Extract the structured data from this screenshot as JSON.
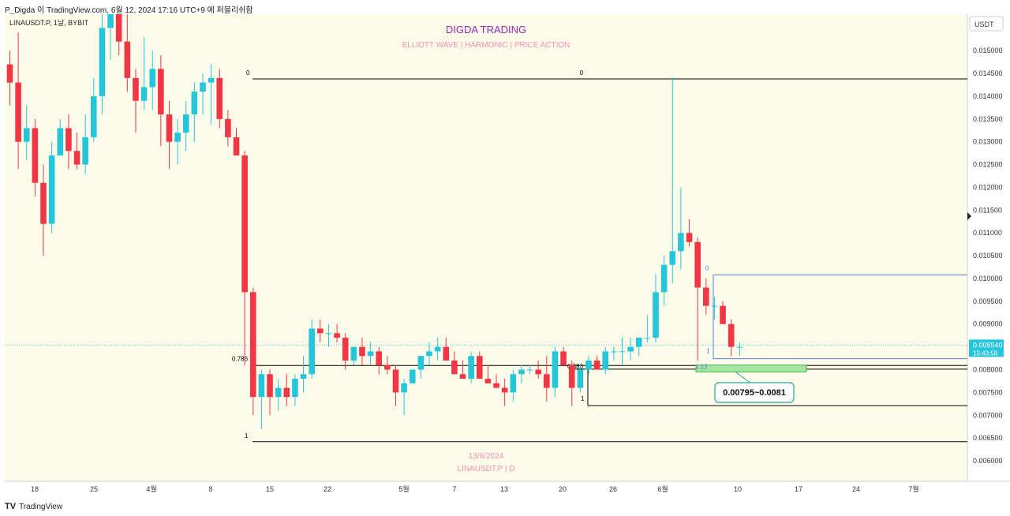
{
  "header": {
    "publisher_line": "P_Digda 이 TradingView.com, 6월 12, 2024 17:16 UTC+9 에 퍼블리쉬함",
    "symbol_line": "LINAUSDT.P, 1날, BYBIT"
  },
  "branding": {
    "title": "DIGDA TRADING",
    "subtitle": "ELLIOTT WAVE  |  HARMONIC  |  PRICE ACTION",
    "date_watermark": "13/6/2024",
    "symbol_watermark": "LINAUSDT.P | D"
  },
  "currency_button": "USDT",
  "footer": {
    "logo_glyph": "TV",
    "brand": "TradingView"
  },
  "price_box": {
    "price": "0.008540",
    "countdown": "15:43:58"
  },
  "annotations": {
    "fib_left_top": "0",
    "fib_center_top": "0",
    "fib_left_0786": "0.786",
    "fib_left_1": "1",
    "fib_mid_0886": "0.886",
    "fib_mid_1": "1",
    "fib_right_0": "0",
    "fib_right_1": "1",
    "fib_right_113": "1.13",
    "target_zone_label": "0.00795~0.0081"
  },
  "colors": {
    "background": "#fdfcea",
    "bull": "#26c6da",
    "bear": "#f23645",
    "title": "#9c27b0",
    "pink_text": "#f48fb1",
    "blue_line": "#5b7fd6",
    "zone_fill": "#a5e6a0",
    "zone_border": "#4caf50",
    "label_border": "#26a69a",
    "price_box": "#26c6da"
  },
  "chart_data": {
    "type": "candlestick",
    "symbol": "LINAUSDT.P",
    "exchange": "BYBIT",
    "timeframe": "1날",
    "y_axis": {
      "ylim": [
        0.00555,
        0.0158
      ],
      "tick_labels": [
        "0.015000",
        "0.014500",
        "0.014000",
        "0.013500",
        "0.013000",
        "0.012500",
        "0.012000",
        "0.011500",
        "0.011000",
        "0.010500",
        "0.010000",
        "0.009500",
        "0.009000",
        "0.008500",
        "0.008000",
        "0.007500",
        "0.007000",
        "0.006500",
        "0.006000"
      ]
    },
    "x_axis": {
      "tick_labels": [
        "18",
        "25",
        "4월",
        "8",
        "15",
        "22",
        "5월",
        "7",
        "13",
        "20",
        "26",
        "6월",
        "10",
        "17",
        "24",
        "7월"
      ]
    },
    "candles": [
      [
        0.0147,
        0.015,
        0.0138,
        0.0143
      ],
      [
        0.0143,
        0.0154,
        0.0124,
        0.013
      ],
      [
        0.013,
        0.0138,
        0.0126,
        0.0133
      ],
      [
        0.0133,
        0.0135,
        0.0118,
        0.0121
      ],
      [
        0.0121,
        0.0125,
        0.0105,
        0.0112
      ],
      [
        0.0112,
        0.013,
        0.011,
        0.0127
      ],
      [
        0.0127,
        0.0135,
        0.0127,
        0.0133
      ],
      [
        0.0133,
        0.0136,
        0.0124,
        0.0128
      ],
      [
        0.0128,
        0.0132,
        0.0124,
        0.0125
      ],
      [
        0.0125,
        0.0136,
        0.0123,
        0.0131
      ],
      [
        0.0131,
        0.0144,
        0.013,
        0.014
      ],
      [
        0.014,
        0.0159,
        0.0136,
        0.0155
      ],
      [
        0.0155,
        0.0163,
        0.0148,
        0.0158
      ],
      [
        0.0158,
        0.0165,
        0.0149,
        0.0152
      ],
      [
        0.0152,
        0.0158,
        0.0141,
        0.0144
      ],
      [
        0.0144,
        0.0146,
        0.0132,
        0.0139
      ],
      [
        0.0139,
        0.0153,
        0.0137,
        0.0142
      ],
      [
        0.0142,
        0.015,
        0.0137,
        0.0146
      ],
      [
        0.0146,
        0.0149,
        0.0129,
        0.0136
      ],
      [
        0.0136,
        0.0139,
        0.0124,
        0.013
      ],
      [
        0.013,
        0.0135,
        0.0125,
        0.0132
      ],
      [
        0.0132,
        0.0139,
        0.0128,
        0.0136
      ],
      [
        0.0136,
        0.0143,
        0.013,
        0.0141
      ],
      [
        0.0141,
        0.0145,
        0.0136,
        0.0143
      ],
      [
        0.0143,
        0.0147,
        0.0134,
        0.0144
      ],
      [
        0.0144,
        0.0146,
        0.0133,
        0.0135
      ],
      [
        0.0135,
        0.0137,
        0.0129,
        0.0131
      ],
      [
        0.0131,
        0.0133,
        0.0127,
        0.0127
      ],
      [
        0.0127,
        0.0128,
        0.0081,
        0.0097
      ],
      [
        0.0097,
        0.0098,
        0.007,
        0.0074
      ],
      [
        0.0074,
        0.008,
        0.0067,
        0.0079
      ],
      [
        0.0079,
        0.008,
        0.007,
        0.0074
      ],
      [
        0.0074,
        0.0078,
        0.0071,
        0.0076
      ],
      [
        0.0076,
        0.0079,
        0.0072,
        0.0074
      ],
      [
        0.0074,
        0.0079,
        0.0072,
        0.0078
      ],
      [
        0.0078,
        0.0083,
        0.0075,
        0.0079
      ],
      [
        0.0079,
        0.0091,
        0.0078,
        0.0089
      ],
      [
        0.0089,
        0.0091,
        0.0086,
        0.0088
      ],
      [
        0.0088,
        0.009,
        0.0085,
        0.0088
      ],
      [
        0.0088,
        0.009,
        0.0086,
        0.0087
      ],
      [
        0.0087,
        0.0088,
        0.008,
        0.0082
      ],
      [
        0.0082,
        0.0085,
        0.0081,
        0.0085
      ],
      [
        0.0085,
        0.0087,
        0.0081,
        0.0083
      ],
      [
        0.0083,
        0.0086,
        0.0081,
        0.0084
      ],
      [
        0.0084,
        0.0085,
        0.0079,
        0.0081
      ],
      [
        0.0081,
        0.0083,
        0.0079,
        0.008
      ],
      [
        0.008,
        0.0081,
        0.0072,
        0.0075
      ],
      [
        0.0075,
        0.0078,
        0.007,
        0.0077
      ],
      [
        0.0077,
        0.008,
        0.0077,
        0.008
      ],
      [
        0.008,
        0.0083,
        0.0078,
        0.0083
      ],
      [
        0.0083,
        0.0086,
        0.0081,
        0.0084
      ],
      [
        0.0084,
        0.0087,
        0.0082,
        0.0085
      ],
      [
        0.0085,
        0.0087,
        0.0082,
        0.0082
      ],
      [
        0.0082,
        0.0084,
        0.0079,
        0.0079
      ],
      [
        0.0079,
        0.0082,
        0.0078,
        0.0078
      ],
      [
        0.0078,
        0.0084,
        0.0077,
        0.0083
      ],
      [
        0.0083,
        0.0084,
        0.0078,
        0.0078
      ],
      [
        0.0078,
        0.0081,
        0.0077,
        0.0077
      ],
      [
        0.0077,
        0.0079,
        0.0076,
        0.0076
      ],
      [
        0.0076,
        0.0078,
        0.0072,
        0.0075
      ],
      [
        0.0075,
        0.008,
        0.0073,
        0.0079
      ],
      [
        0.0079,
        0.0081,
        0.0077,
        0.008
      ],
      [
        0.008,
        0.0081,
        0.0079,
        0.008
      ],
      [
        0.008,
        0.0082,
        0.0078,
        0.0079
      ],
      [
        0.0079,
        0.0083,
        0.0073,
        0.0076
      ],
      [
        0.0076,
        0.0085,
        0.0074,
        0.0084
      ],
      [
        0.0084,
        0.0085,
        0.0082,
        0.0081
      ],
      [
        0.0081,
        0.0082,
        0.0072,
        0.0076
      ],
      [
        0.0076,
        0.0081,
        0.0075,
        0.008
      ],
      [
        0.008,
        0.0083,
        0.0079,
        0.0082
      ],
      [
        0.0082,
        0.0083,
        0.008,
        0.008
      ],
      [
        0.008,
        0.0085,
        0.0079,
        0.0084
      ],
      [
        0.0084,
        0.0085,
        0.0082,
        0.0084
      ],
      [
        0.0084,
        0.0087,
        0.0081,
        0.0084
      ],
      [
        0.0084,
        0.0087,
        0.0082,
        0.0085
      ],
      [
        0.0085,
        0.0087,
        0.0083,
        0.0087
      ],
      [
        0.0087,
        0.0092,
        0.0086,
        0.0087
      ],
      [
        0.0087,
        0.0101,
        0.0086,
        0.0097
      ],
      [
        0.0097,
        0.0105,
        0.0094,
        0.0103
      ],
      [
        0.0103,
        0.0144,
        0.0099,
        0.0106
      ],
      [
        0.0106,
        0.012,
        0.0102,
        0.011
      ],
      [
        0.011,
        0.0113,
        0.0107,
        0.0108
      ],
      [
        0.0108,
        0.0109,
        0.0082,
        0.0098
      ],
      [
        0.0098,
        0.01,
        0.0092,
        0.0094
      ],
      [
        0.0094,
        0.0096,
        0.0091,
        0.0094
      ],
      [
        0.0094,
        0.0095,
        0.009,
        0.009
      ],
      [
        0.009,
        0.0091,
        0.0083,
        0.0085
      ],
      [
        0.0085,
        0.0086,
        0.0083,
        0.0085
      ]
    ],
    "levels": [
      {
        "name": "fib-left-0",
        "price": 0.01438
      },
      {
        "name": "fib-left-0786",
        "price": 0.00809
      },
      {
        "name": "fib-left-1",
        "price": 0.00642
      },
      {
        "name": "fib-mid-0886",
        "price": 0.00801
      },
      {
        "name": "fib-mid-1",
        "price": 0.00721
      },
      {
        "name": "fib-right-0",
        "price": 0.01008
      },
      {
        "name": "fib-right-1",
        "price": 0.00824
      },
      {
        "name": "fib-right-113",
        "price": 0.00795
      }
    ],
    "target_zone": [
      0.00795,
      0.0081
    ],
    "last_price": 0.00854
  }
}
